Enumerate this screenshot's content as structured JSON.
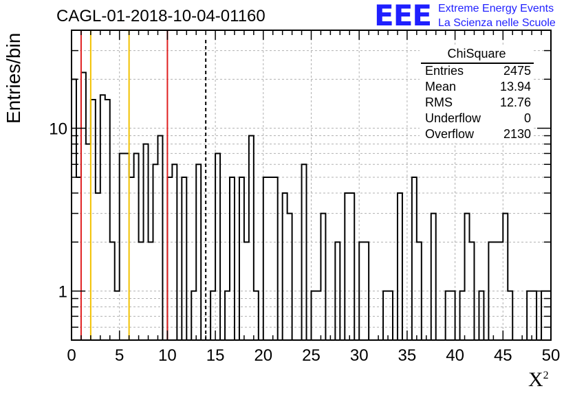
{
  "header": {
    "title": "CAGL-01-2018-10-04-01160",
    "logo_letters": "EEE",
    "logo_line1": "Extreme Energy Events",
    "logo_line2": "La Scienza nelle Scuole"
  },
  "stats": {
    "title": "ChiSquare",
    "rows": [
      {
        "key": "Entries",
        "value": "2475"
      },
      {
        "key": "Mean",
        "value": "13.94"
      },
      {
        "key": "RMS",
        "value": "12.76"
      },
      {
        "key": "Underflow",
        "value": "0"
      },
      {
        "key": "Overflow",
        "value": "2130"
      }
    ]
  },
  "chart_data": {
    "type": "histogram",
    "title": "CAGL-01-2018-10-04-01160",
    "xlabel": "X",
    "xlabel_sup": "2",
    "ylabel": "Entries/bin",
    "xlim": [
      0,
      50
    ],
    "ylim": [
      0.5,
      40
    ],
    "y_scale": "log",
    "grid": true,
    "bin_width": 0.5,
    "x_ticks": [
      "0",
      "5",
      "10",
      "15",
      "20",
      "25",
      "30",
      "35",
      "40",
      "45",
      "50"
    ],
    "y_ticks": [
      "1",
      "10"
    ],
    "bin_values": [
      20,
      5,
      22,
      8,
      15,
      4,
      16,
      15,
      2,
      1,
      7,
      7,
      5,
      7,
      2,
      8,
      2,
      6,
      9,
      0,
      5,
      6,
      0,
      5,
      0,
      1,
      6,
      0,
      0,
      1,
      7,
      0,
      1,
      5,
      0,
      5,
      2,
      9,
      1,
      0,
      5,
      5,
      5,
      0,
      4,
      3,
      0,
      0,
      6,
      0,
      1,
      1,
      3,
      0,
      0,
      2,
      0,
      4,
      4,
      0,
      2,
      2,
      0,
      0,
      0,
      1,
      1,
      0,
      4,
      0,
      0,
      5,
      2,
      0,
      0,
      3,
      0,
      0,
      1,
      1,
      0,
      1,
      3,
      2,
      0,
      1,
      0,
      2,
      2,
      2,
      3,
      1,
      0,
      0,
      0,
      1,
      1,
      0,
      1,
      1
    ],
    "reference_lines": [
      {
        "x": 1,
        "color": "#e02020",
        "style": "solid"
      },
      {
        "x": 2,
        "color": "#f2c100",
        "style": "solid"
      },
      {
        "x": 6,
        "color": "#f2c100",
        "style": "solid"
      },
      {
        "x": 10,
        "color": "#e02020",
        "style": "solid"
      },
      {
        "x": 14,
        "color": "#000000",
        "style": "dashed"
      }
    ],
    "legend_placement": "top-right stats box"
  }
}
